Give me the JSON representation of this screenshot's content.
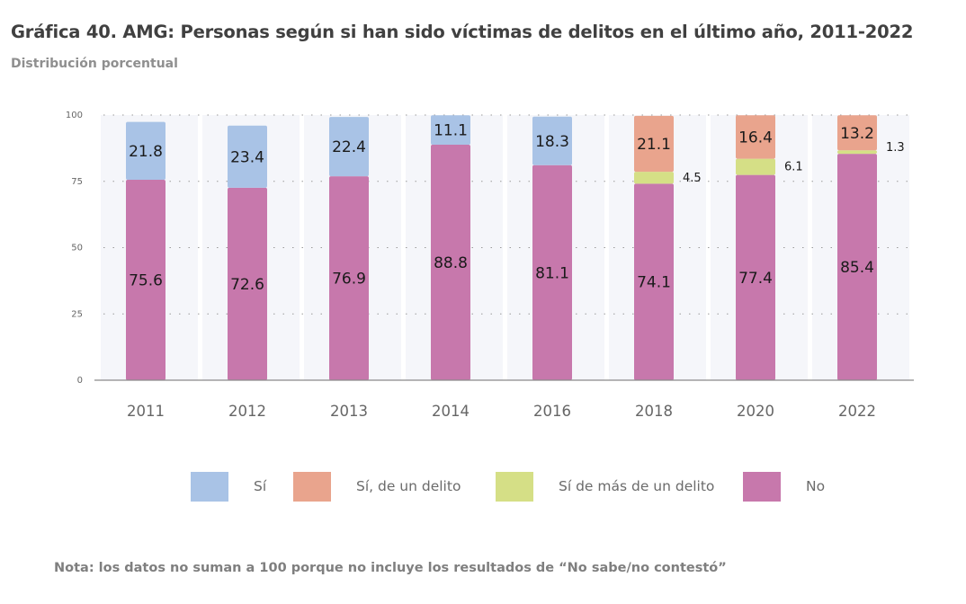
{
  "title": "Gráfica 40. AMG: Personas según si han sido víctimas de delitos en el último año, 2011-2022",
  "subtitle": "Distribución porcentual",
  "note": "Nota: los datos no suman a 100 porque no incluye los resultados de “No sabe/no contestó”",
  "colors": {
    "si": "#a9c3e6",
    "si_un_delito": "#e9a48d",
    "si_mas_de_un_delito": "#d5df86",
    "no": "#c778ac",
    "axis_text": "#666666",
    "label_text": "#1a1a1a"
  },
  "legend": [
    {
      "key": "si",
      "label": "Sí"
    },
    {
      "key": "si_un_delito",
      "label": "Sí, de un delito"
    },
    {
      "key": "si_mas_de_un_delito",
      "label": "Sí de más de un delito"
    },
    {
      "key": "no",
      "label": "No"
    }
  ],
  "chart_data": {
    "type": "bar",
    "stacked": true,
    "categories": [
      "2011",
      "2012",
      "2013",
      "2014",
      "2016",
      "2018",
      "2020",
      "2022"
    ],
    "series": [
      {
        "key": "no",
        "name": "No",
        "values": [
          75.6,
          72.6,
          76.9,
          88.8,
          81.1,
          74.1,
          77.4,
          85.4
        ]
      },
      {
        "key": "si_mas_de_un_delito",
        "name": "Sí de más de un delito",
        "values": [
          null,
          null,
          null,
          null,
          null,
          4.5,
          6.1,
          1.3
        ]
      },
      {
        "key": "si_un_delito",
        "name": "Sí, de un delito",
        "values": [
          null,
          null,
          null,
          null,
          null,
          21.1,
          16.4,
          13.2
        ]
      },
      {
        "key": "si",
        "name": "Sí",
        "values": [
          21.8,
          23.4,
          22.4,
          11.1,
          18.3,
          null,
          null,
          null
        ]
      }
    ],
    "ylim": [
      0,
      100
    ],
    "yticks": [
      0,
      25,
      50,
      75,
      100
    ],
    "grid": true,
    "legend_position": "bottom"
  }
}
